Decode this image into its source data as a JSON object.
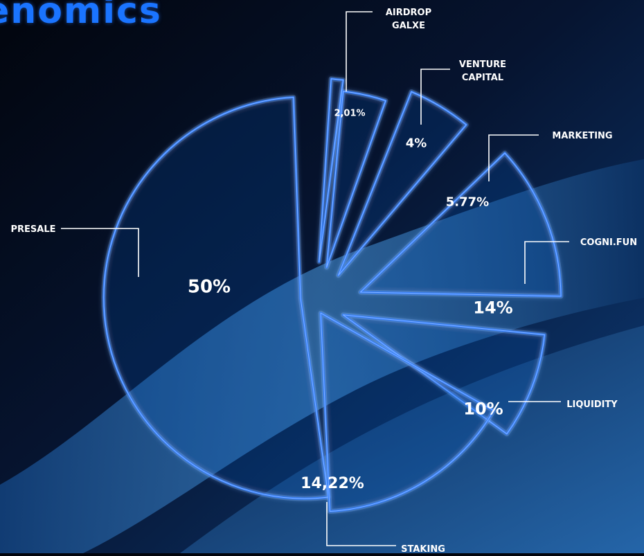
{
  "header": {
    "title_fragment": "enomics"
  },
  "chart_data": {
    "type": "pie",
    "slices": [
      {
        "label_lines": [
          "PRESALE"
        ],
        "value_label": "50%",
        "value": 50
      },
      {
        "label_lines": [
          "AIRDROP",
          "GALXE"
        ],
        "value_label": "2,01%",
        "value": 2.01
      },
      {
        "label_lines": [
          "VENTURE",
          "CAPITAL"
        ],
        "value_label": "4%",
        "value": 4
      },
      {
        "label_lines": [
          "MARKETING"
        ],
        "value_label": "5.77%",
        "value": 5.77
      },
      {
        "label_lines": [
          "COGNI.FUN"
        ],
        "value_label": "14%",
        "value": 14
      },
      {
        "label_lines": [
          "LIQUIDITY"
        ],
        "value_label": "10%",
        "value": 10
      },
      {
        "label_lines": [
          "STAKING"
        ],
        "value_label": "14,22%",
        "value": 14.22
      }
    ]
  },
  "colors": {
    "background": "#02050d",
    "slice_stroke": "#2f7dff",
    "slice_glow": "#7fb4ff",
    "title": "#1a74ff",
    "label": "#ffffff"
  }
}
